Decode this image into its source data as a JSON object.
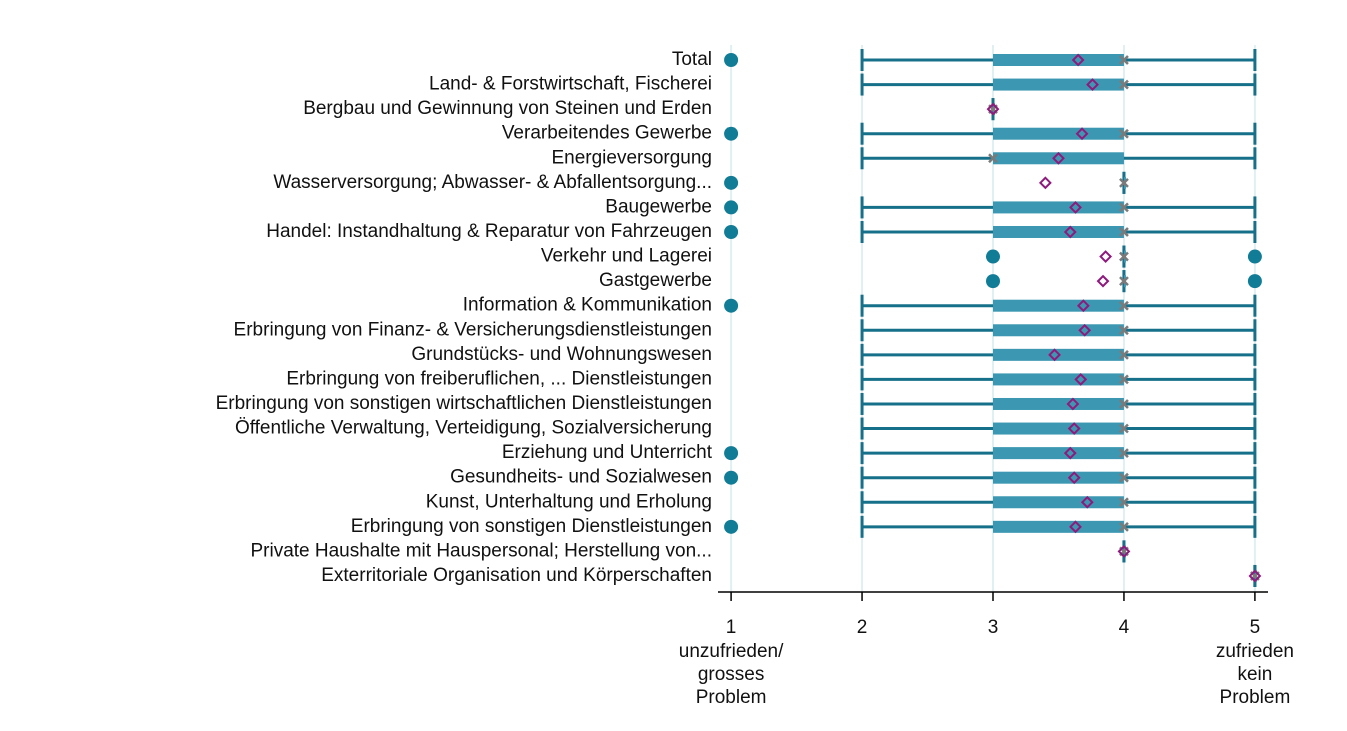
{
  "chart_data": {
    "type": "boxplot",
    "orientation": "horizontal",
    "categories": [
      "Total",
      "Land- & Forstwirtschaft, Fischerei",
      "Bergbau und Gewinnung von Steinen und Erden",
      "Verarbeitendes Gewerbe",
      "Energieversorgung",
      "Wasserversorgung; Abwasser- & Abfallentsorgung...",
      "Baugewerbe",
      "Handel: Instandhaltung & Reparatur von Fahrzeugen",
      "Verkehr und Lagerei",
      "Gastgewerbe",
      "Information & Kommunikation",
      "Erbringung von Finanz- & Versicherungsdienstleistungen",
      "Grundstücks- und Wohnungswesen",
      "Erbringung von freiberuflichen, ... Dienstleistungen",
      "Erbringung von sonstigen wirtschaftlichen Dienstleistungen",
      "Öffentliche Verwaltung, Verteidigung, Sozialversicherung",
      "Erziehung und Unterricht",
      "Gesundheits- und Sozialwesen",
      "Kunst, Unterhaltung und Erholung",
      "Erbringung von sonstigen Dienstleistungen",
      "Private Haushalte mit Hauspersonal; Herstellung von...",
      "Exterritoriale Organisation und Körperschaften"
    ],
    "whisker_low": [
      2,
      2,
      3,
      2,
      2,
      4,
      2,
      2,
      4,
      4,
      2,
      2,
      2,
      2,
      2,
      2,
      2,
      2,
      2,
      2,
      4,
      5
    ],
    "q1": [
      3,
      3,
      3,
      3,
      3,
      4,
      3,
      3,
      4,
      4,
      3,
      3,
      3,
      3,
      3,
      3,
      3,
      3,
      3,
      3,
      4,
      5
    ],
    "median": [
      4,
      4,
      3,
      4,
      3,
      4,
      4,
      4,
      4,
      4,
      4,
      4,
      4,
      4,
      4,
      4,
      4,
      4,
      4,
      4,
      4,
      5
    ],
    "q3": [
      4,
      4,
      3,
      4,
      4,
      4,
      4,
      4,
      4,
      4,
      4,
      4,
      4,
      4,
      4,
      4,
      4,
      4,
      4,
      4,
      4,
      5
    ],
    "whisker_high": [
      5,
      5,
      3,
      5,
      5,
      4,
      5,
      5,
      4,
      4,
      5,
      5,
      5,
      5,
      5,
      5,
      5,
      5,
      5,
      5,
      4,
      5
    ],
    "mean": [
      3.65,
      3.76,
      3,
      3.68,
      3.5,
      3.4,
      3.63,
      3.59,
      3.86,
      3.84,
      3.69,
      3.7,
      3.47,
      3.67,
      3.61,
      3.62,
      3.59,
      3.62,
      3.72,
      3.63,
      4,
      5
    ],
    "outliers": [
      [
        1
      ],
      [],
      [],
      [
        1
      ],
      [],
      [
        1
      ],
      [
        1
      ],
      [
        1
      ],
      [
        3,
        5
      ],
      [
        3,
        5
      ],
      [
        1
      ],
      [],
      [],
      [],
      [],
      [],
      [
        1
      ],
      [
        1
      ],
      [],
      [
        1
      ],
      [],
      []
    ],
    "xlim": [
      0.9,
      5.1
    ],
    "xticks": [
      1,
      2,
      3,
      4,
      5
    ],
    "grid": true,
    "colors": {
      "whisker": "#17708a",
      "box": "#3c98b2",
      "outlier": "#117c96",
      "mean": "#8e1a7e",
      "median": "#7a7a7a",
      "grid": "#dff0f3"
    },
    "x_annotations": [
      {
        "value": 1,
        "lines": [
          "unzufrieden/",
          "grosses",
          "Problem"
        ]
      },
      {
        "value": 5,
        "lines": [
          "zufrieden",
          "kein",
          "Problem"
        ]
      }
    ]
  }
}
